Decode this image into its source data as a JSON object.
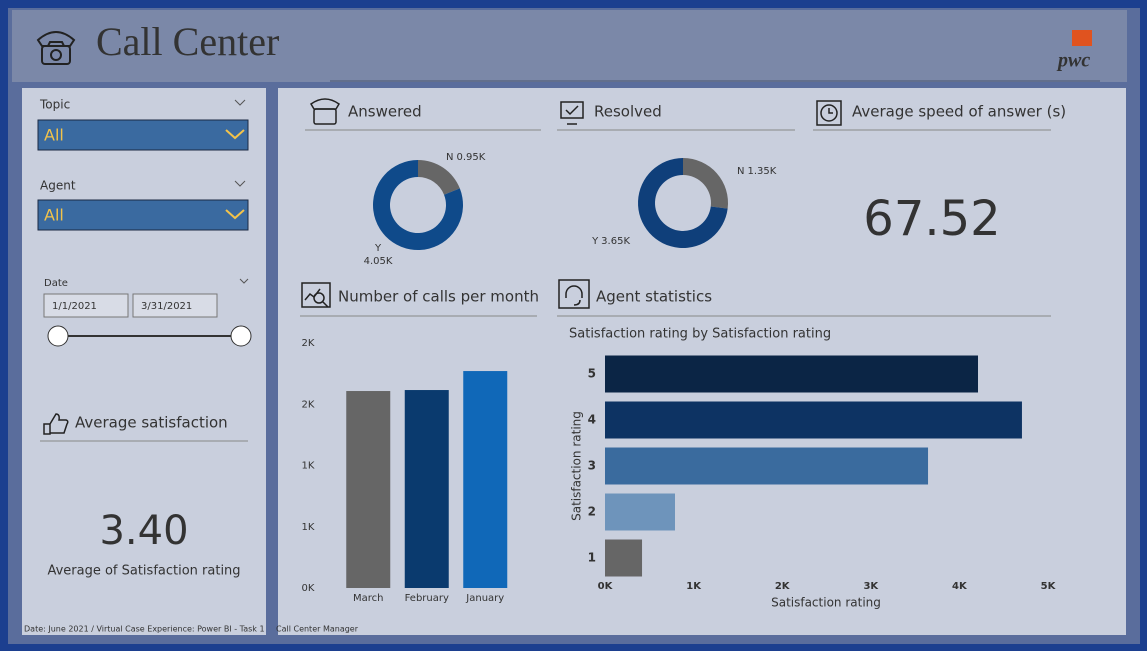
{
  "header": {
    "title": "Call Center",
    "logo": "pwc"
  },
  "filters": {
    "topic": {
      "label": "Topic",
      "value": "All"
    },
    "agent": {
      "label": "Agent",
      "value": "All"
    },
    "date": {
      "label": "Date",
      "start": "1/1/2021",
      "end": "3/31/2021"
    }
  },
  "kpis": {
    "avg_satisfaction": {
      "title": "Average satisfaction",
      "value": "3.40",
      "caption": "Average of Satisfaction rating"
    },
    "avg_speed": {
      "title": "Average speed of answer (s)",
      "value": "67.52"
    }
  },
  "footer": {
    "left": "Date: June 2021 / Virtual Case Experience: Power BI - Task 1",
    "right": "Call Center Manager"
  },
  "chart_data": [
    {
      "type": "pie",
      "title": "Answered",
      "categories": [
        "N",
        "Y"
      ],
      "values": [
        950,
        4050
      ],
      "value_labels": [
        "0.95K",
        "4.05K"
      ],
      "colors": [
        "#666666",
        "#0f4a8a"
      ]
    },
    {
      "type": "pie",
      "title": "Resolved",
      "categories": [
        "N",
        "Y"
      ],
      "values": [
        1350,
        3650
      ],
      "value_labels": [
        "1.35K",
        "3.65K"
      ],
      "colors": [
        "#666666",
        "#0f3f7a"
      ]
    },
    {
      "type": "bar",
      "title": "Number of calls per month",
      "categories": [
        "March",
        "February",
        "January"
      ],
      "values": [
        1608,
        1616,
        1771
      ],
      "colors": [
        "#666666",
        "#0a3a6e",
        "#1068b8"
      ],
      "ylim": [
        0,
        2000
      ],
      "yticks": [
        {
          "value": 0,
          "label": "0K"
        },
        {
          "value": 500,
          "label": "1K"
        },
        {
          "value": 1000,
          "label": "1K"
        },
        {
          "value": 1500,
          "label": "2K"
        },
        {
          "value": 2000,
          "label": "2K"
        }
      ]
    },
    {
      "type": "hbar",
      "section": "Agent statistics",
      "title": "Satisfaction rating by Satisfaction rating",
      "x_label": "Satisfaction rating",
      "y_label": "Satisfaction rating",
      "categories": [
        "5",
        "4",
        "3",
        "2",
        "1"
      ],
      "values": [
        4210,
        4706,
        3646,
        790,
        418
      ],
      "colors": [
        "#0b2545",
        "#0d3363",
        "#3a6b9e",
        "#6e94bb",
        "#666666"
      ],
      "xlim": [
        0,
        5000
      ],
      "xticks": [
        {
          "value": 0,
          "label": "0K"
        },
        {
          "value": 1000,
          "label": "1K"
        },
        {
          "value": 2000,
          "label": "2K"
        },
        {
          "value": 3000,
          "label": "3K"
        },
        {
          "value": 4000,
          "label": "4K"
        },
        {
          "value": 5000,
          "label": "5K"
        }
      ]
    }
  ]
}
